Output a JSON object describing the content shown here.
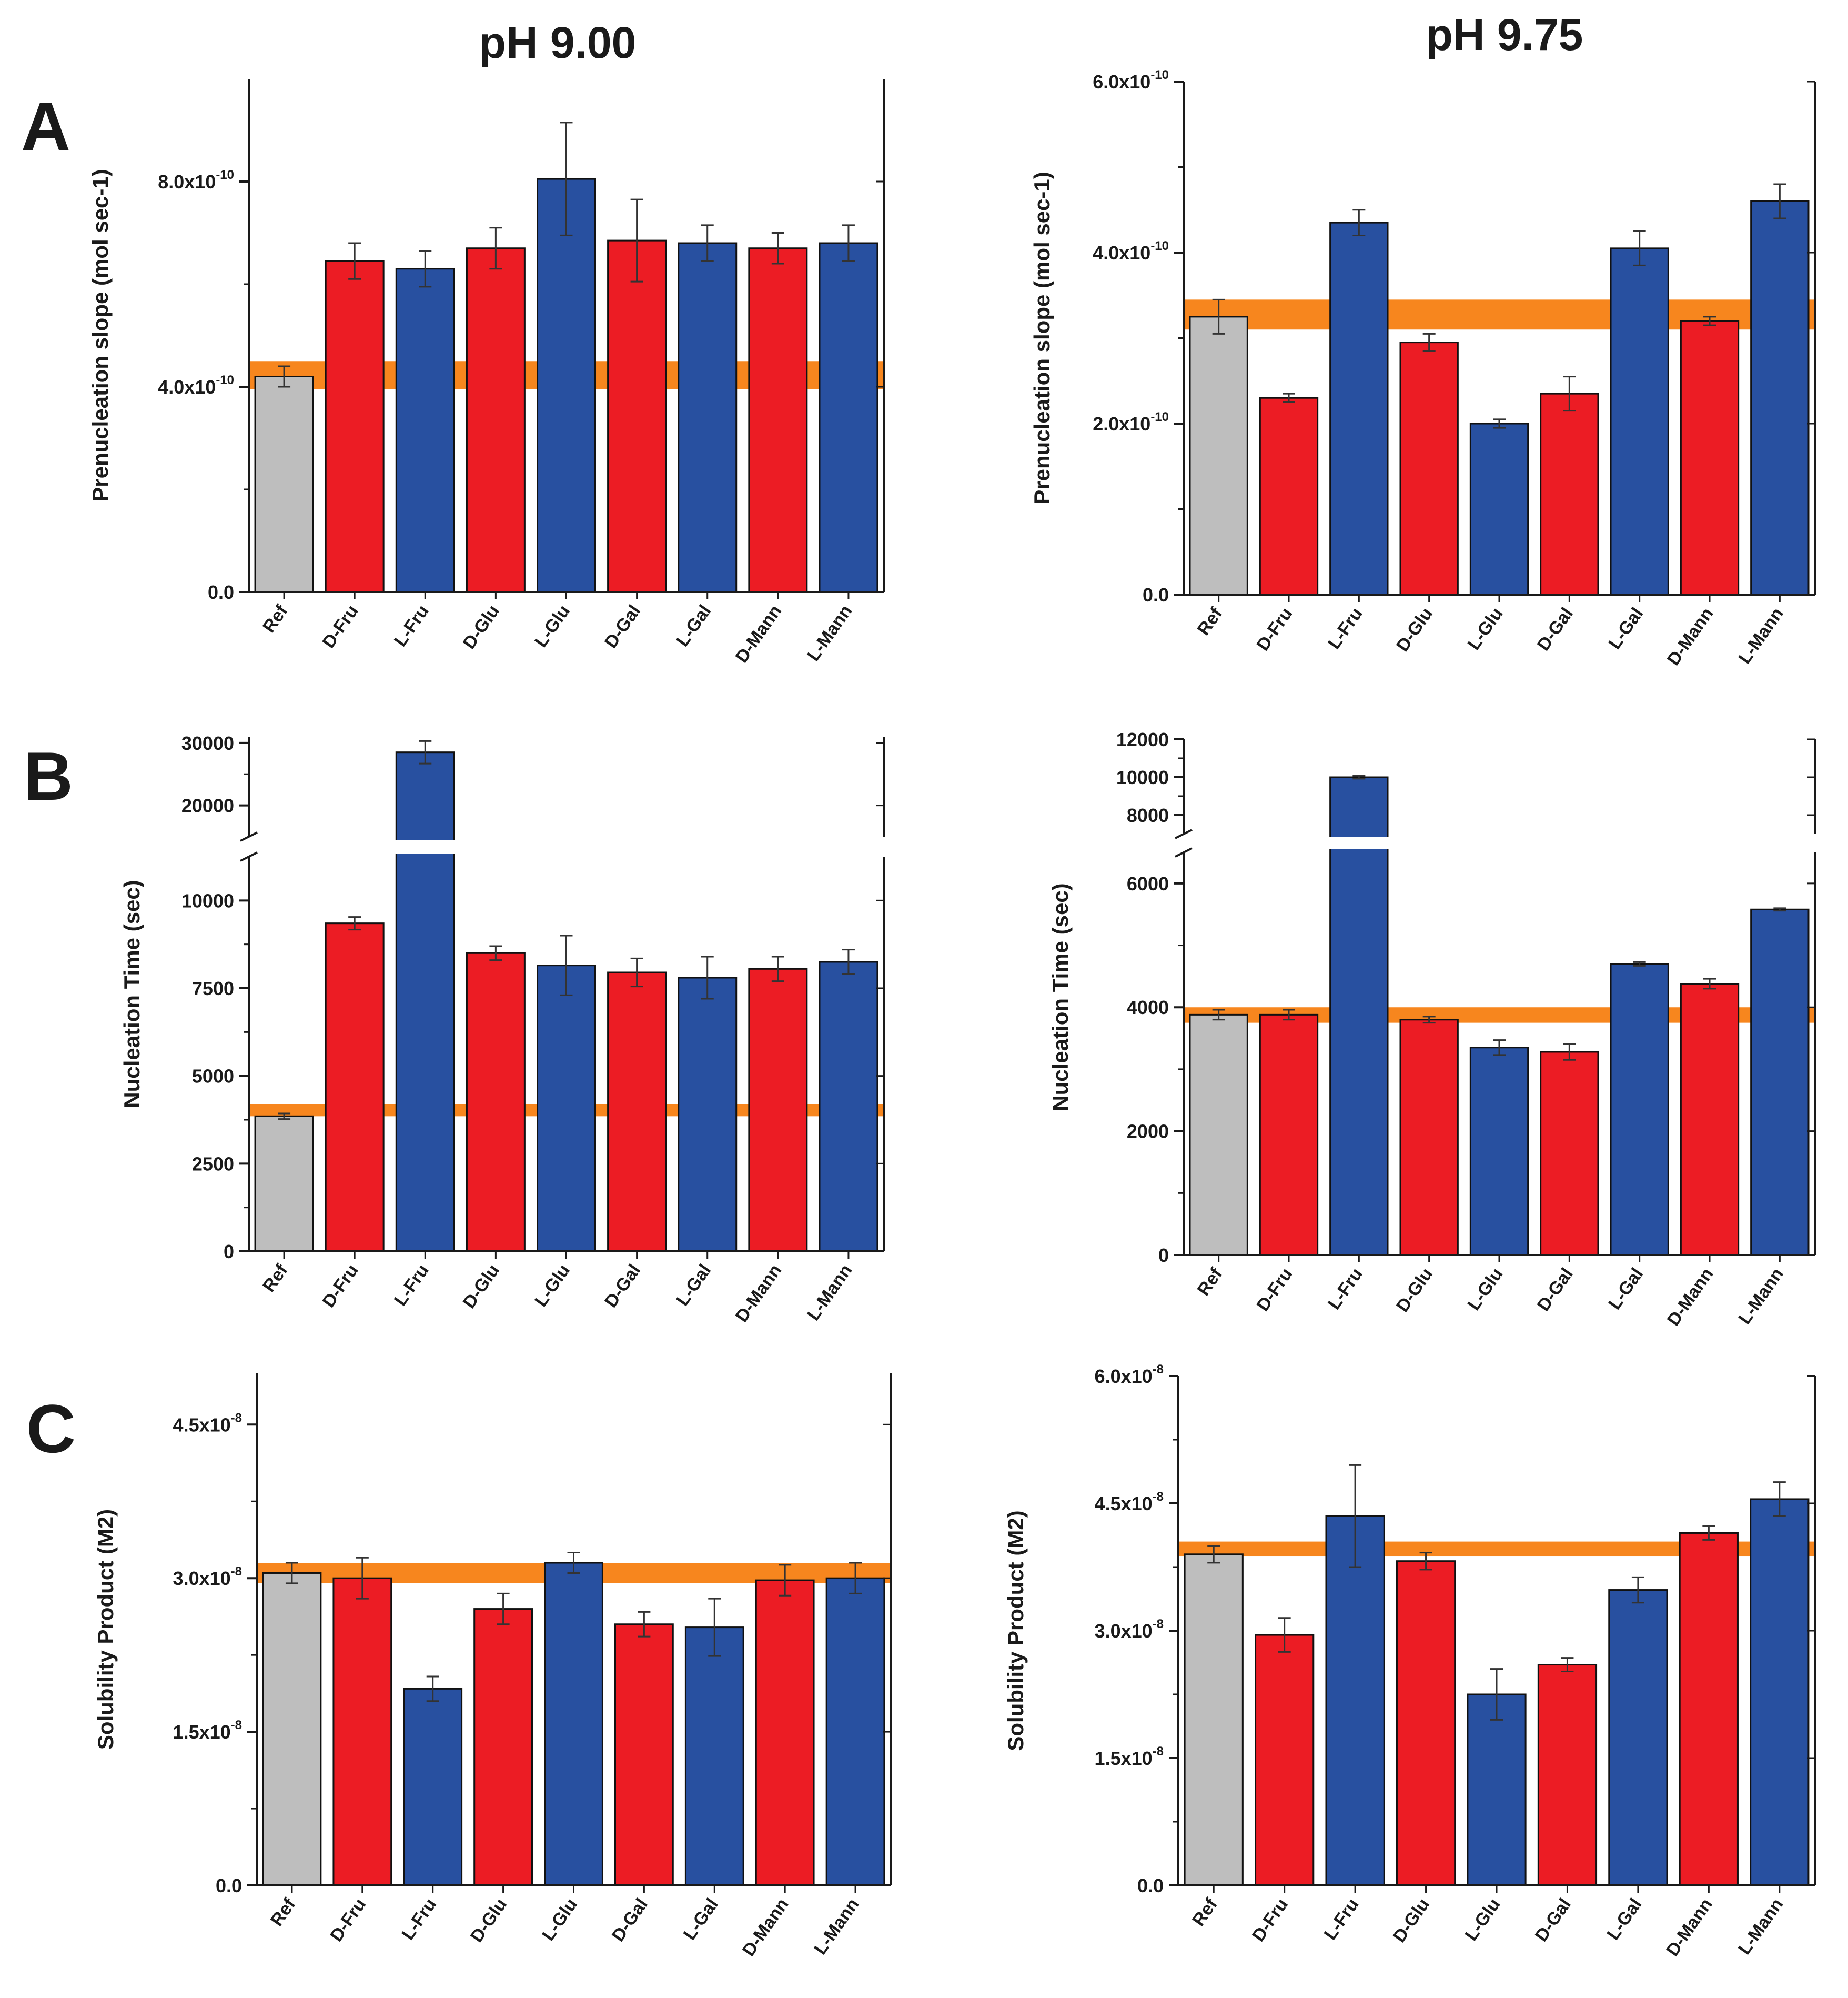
{
  "figure": {
    "columns": [
      "pH 9.00",
      "pH 9.75"
    ],
    "rows": [
      "A",
      "B",
      "C"
    ]
  },
  "colors": {
    "ref": "#bebebe",
    "D": "#ec1c24",
    "L": "#2850a0",
    "band": "#f7861e",
    "axis": "#1a1a1a"
  },
  "chart_data": [
    {
      "id": "A-pH9.00",
      "panel": "A",
      "column": "pH 9.00",
      "type": "bar",
      "ylabel": "Prenucleation slope (mol sec-1)",
      "categories": [
        "Ref",
        "D-Fru",
        "L-Fru",
        "D-Glu",
        "L-Glu",
        "D-Gal",
        "L-Gal",
        "D-Mann",
        "L-Mann"
      ],
      "groups": [
        "ref",
        "D",
        "L",
        "D",
        "L",
        "D",
        "L",
        "D",
        "L"
      ],
      "values": [
        4.2e-10,
        6.45e-10,
        6.3e-10,
        6.7e-10,
        8.05e-10,
        6.85e-10,
        6.8e-10,
        6.7e-10,
        6.8e-10
      ],
      "errors": [
        2e-11,
        3.5e-11,
        3.5e-11,
        4e-11,
        1.1e-10,
        8e-11,
        3.5e-11,
        3e-11,
        3.5e-11
      ],
      "band": [
        3.95e-10,
        4.5e-10
      ],
      "ylim": [
        0,
        1e-09
      ],
      "yticks": [
        {
          "v": 0,
          "label": "0.0"
        },
        {
          "v": 4e-10,
          "label": "4.0x10",
          "exp": "-10"
        },
        {
          "v": 8e-10,
          "label": "8.0x10",
          "exp": "-10"
        }
      ]
    },
    {
      "id": "A-pH9.75",
      "panel": "A",
      "column": "pH 9.75",
      "type": "bar",
      "ylabel": "Prenucleation slope (mol sec-1)",
      "categories": [
        "Ref",
        "D-Fru",
        "L-Fru",
        "D-Glu",
        "L-Glu",
        "D-Gal",
        "L-Gal",
        "D-Mann",
        "L-Mann"
      ],
      "groups": [
        "ref",
        "D",
        "L",
        "D",
        "L",
        "D",
        "L",
        "D",
        "L"
      ],
      "values": [
        3.25e-10,
        2.3e-10,
        4.35e-10,
        2.95e-10,
        2e-10,
        2.35e-10,
        4.05e-10,
        3.2e-10,
        4.6e-10
      ],
      "errors": [
        2e-11,
        5e-12,
        1.5e-11,
        1e-11,
        5e-12,
        2e-11,
        2e-11,
        5e-12,
        2e-11
      ],
      "band": [
        3.1e-10,
        3.45e-10
      ],
      "ylim": [
        0,
        6e-10
      ],
      "yticks": [
        {
          "v": 0,
          "label": "0.0"
        },
        {
          "v": 2e-10,
          "label": "2.0x10",
          "exp": "-10"
        },
        {
          "v": 4e-10,
          "label": "4.0x10",
          "exp": "-10"
        },
        {
          "v": 6e-10,
          "label": "6.0x10",
          "exp": "-10"
        }
      ]
    },
    {
      "id": "B-pH9.00",
      "panel": "B",
      "column": "pH 9.00",
      "type": "bar",
      "ylabel": "Nucleation Time (sec)",
      "categories": [
        "Ref",
        "D-Fru",
        "L-Fru",
        "D-Glu",
        "L-Glu",
        "D-Gal",
        "L-Gal",
        "D-Mann",
        "L-Mann"
      ],
      "groups": [
        "ref",
        "D",
        "L",
        "D",
        "L",
        "D",
        "L",
        "D",
        "L"
      ],
      "values": [
        3850,
        9350,
        28500,
        8500,
        8150,
        7950,
        7800,
        8050,
        8250
      ],
      "errors": [
        80,
        180,
        1800,
        200,
        850,
        400,
        600,
        350,
        350
      ],
      "band": [
        3850,
        4200
      ],
      "broken_axis": {
        "lower": [
          0,
          11250
        ],
        "upper": [
          15000,
          31000
        ]
      },
      "yticks": [
        {
          "v": 0,
          "label": "0"
        },
        {
          "v": 2500,
          "label": "2500"
        },
        {
          "v": 5000,
          "label": "5000"
        },
        {
          "v": 7500,
          "label": "7500"
        },
        {
          "v": 10000,
          "label": "10000"
        },
        {
          "v": 20000,
          "label": "20000"
        },
        {
          "v": 30000,
          "label": "30000"
        }
      ]
    },
    {
      "id": "B-pH9.75",
      "panel": "B",
      "column": "pH 9.75",
      "type": "bar",
      "ylabel": "Nucleation Time (sec)",
      "categories": [
        "Ref",
        "D-Fru",
        "L-Fru",
        "D-Glu",
        "L-Glu",
        "D-Gal",
        "L-Gal",
        "D-Mann",
        "L-Mann"
      ],
      "groups": [
        "ref",
        "D",
        "L",
        "D",
        "L",
        "D",
        "L",
        "D",
        "L"
      ],
      "values": [
        3880,
        3880,
        10000,
        3800,
        3350,
        3280,
        4700,
        4380,
        5580
      ],
      "errors": [
        80,
        80,
        80,
        50,
        120,
        130,
        30,
        80,
        20
      ],
      "band": [
        3750,
        4000
      ],
      "broken_axis": {
        "lower": [
          0,
          6500
        ],
        "upper": [
          7000,
          12000
        ]
      },
      "yticks": [
        {
          "v": 0,
          "label": "0"
        },
        {
          "v": 2000,
          "label": "2000"
        },
        {
          "v": 4000,
          "label": "4000"
        },
        {
          "v": 6000,
          "label": "6000"
        },
        {
          "v": 8000,
          "label": "8000"
        },
        {
          "v": 10000,
          "label": "10000"
        },
        {
          "v": 12000,
          "label": "12000"
        }
      ]
    },
    {
      "id": "C-pH9.00",
      "panel": "C",
      "column": "pH 9.00",
      "type": "bar",
      "ylabel": "Solubility Product (M2)",
      "categories": [
        "Ref",
        "D-Fru",
        "L-Fru",
        "D-Glu",
        "L-Glu",
        "D-Gal",
        "L-Gal",
        "D-Mann",
        "L-Mann"
      ],
      "groups": [
        "ref",
        "D",
        "L",
        "D",
        "L",
        "D",
        "L",
        "D",
        "L"
      ],
      "values": [
        3.05e-08,
        3e-08,
        1.92e-08,
        2.7e-08,
        3.15e-08,
        2.55e-08,
        2.52e-08,
        2.98e-08,
        3e-08
      ],
      "errors": [
        1e-09,
        2e-09,
        1.2e-09,
        1.5e-09,
        1e-09,
        1.2e-09,
        2.8e-09,
        1.5e-09,
        1.5e-09
      ],
      "band": [
        2.95e-08,
        3.15e-08
      ],
      "ylim": [
        0,
        5e-08
      ],
      "yticks": [
        {
          "v": 0,
          "label": "0.0"
        },
        {
          "v": 1.5e-08,
          "label": "1.5x10",
          "exp": "-8"
        },
        {
          "v": 3e-08,
          "label": "3.0x10",
          "exp": "-8"
        },
        {
          "v": 4.5e-08,
          "label": "4.5x10",
          "exp": "-8"
        }
      ]
    },
    {
      "id": "C-pH9.75",
      "panel": "C",
      "column": "pH 9.75",
      "type": "bar",
      "ylabel": "Solubility Product (M2)",
      "categories": [
        "Ref",
        "D-Fru",
        "L-Fru",
        "D-Glu",
        "L-Glu",
        "D-Gal",
        "L-Gal",
        "D-Mann",
        "L-Mann"
      ],
      "groups": [
        "ref",
        "D",
        "L",
        "D",
        "L",
        "D",
        "L",
        "D",
        "L"
      ],
      "values": [
        3.9e-08,
        2.95e-08,
        4.35e-08,
        3.82e-08,
        2.25e-08,
        2.6e-08,
        3.48e-08,
        4.15e-08,
        4.55e-08
      ],
      "errors": [
        1e-09,
        2e-09,
        6e-09,
        1e-09,
        3e-09,
        8e-10,
        1.5e-09,
        8e-10,
        2e-09
      ],
      "band": [
        3.88e-08,
        4.05e-08
      ],
      "ylim": [
        0,
        6e-08
      ],
      "yticks": [
        {
          "v": 0,
          "label": "0.0"
        },
        {
          "v": 1.5e-08,
          "label": "1.5x10",
          "exp": "-8"
        },
        {
          "v": 3e-08,
          "label": "3.0x10",
          "exp": "-8"
        },
        {
          "v": 4.5e-08,
          "label": "4.5x10",
          "exp": "-8"
        },
        {
          "v": 6e-08,
          "label": "6.0x10",
          "exp": "-8"
        }
      ]
    }
  ]
}
